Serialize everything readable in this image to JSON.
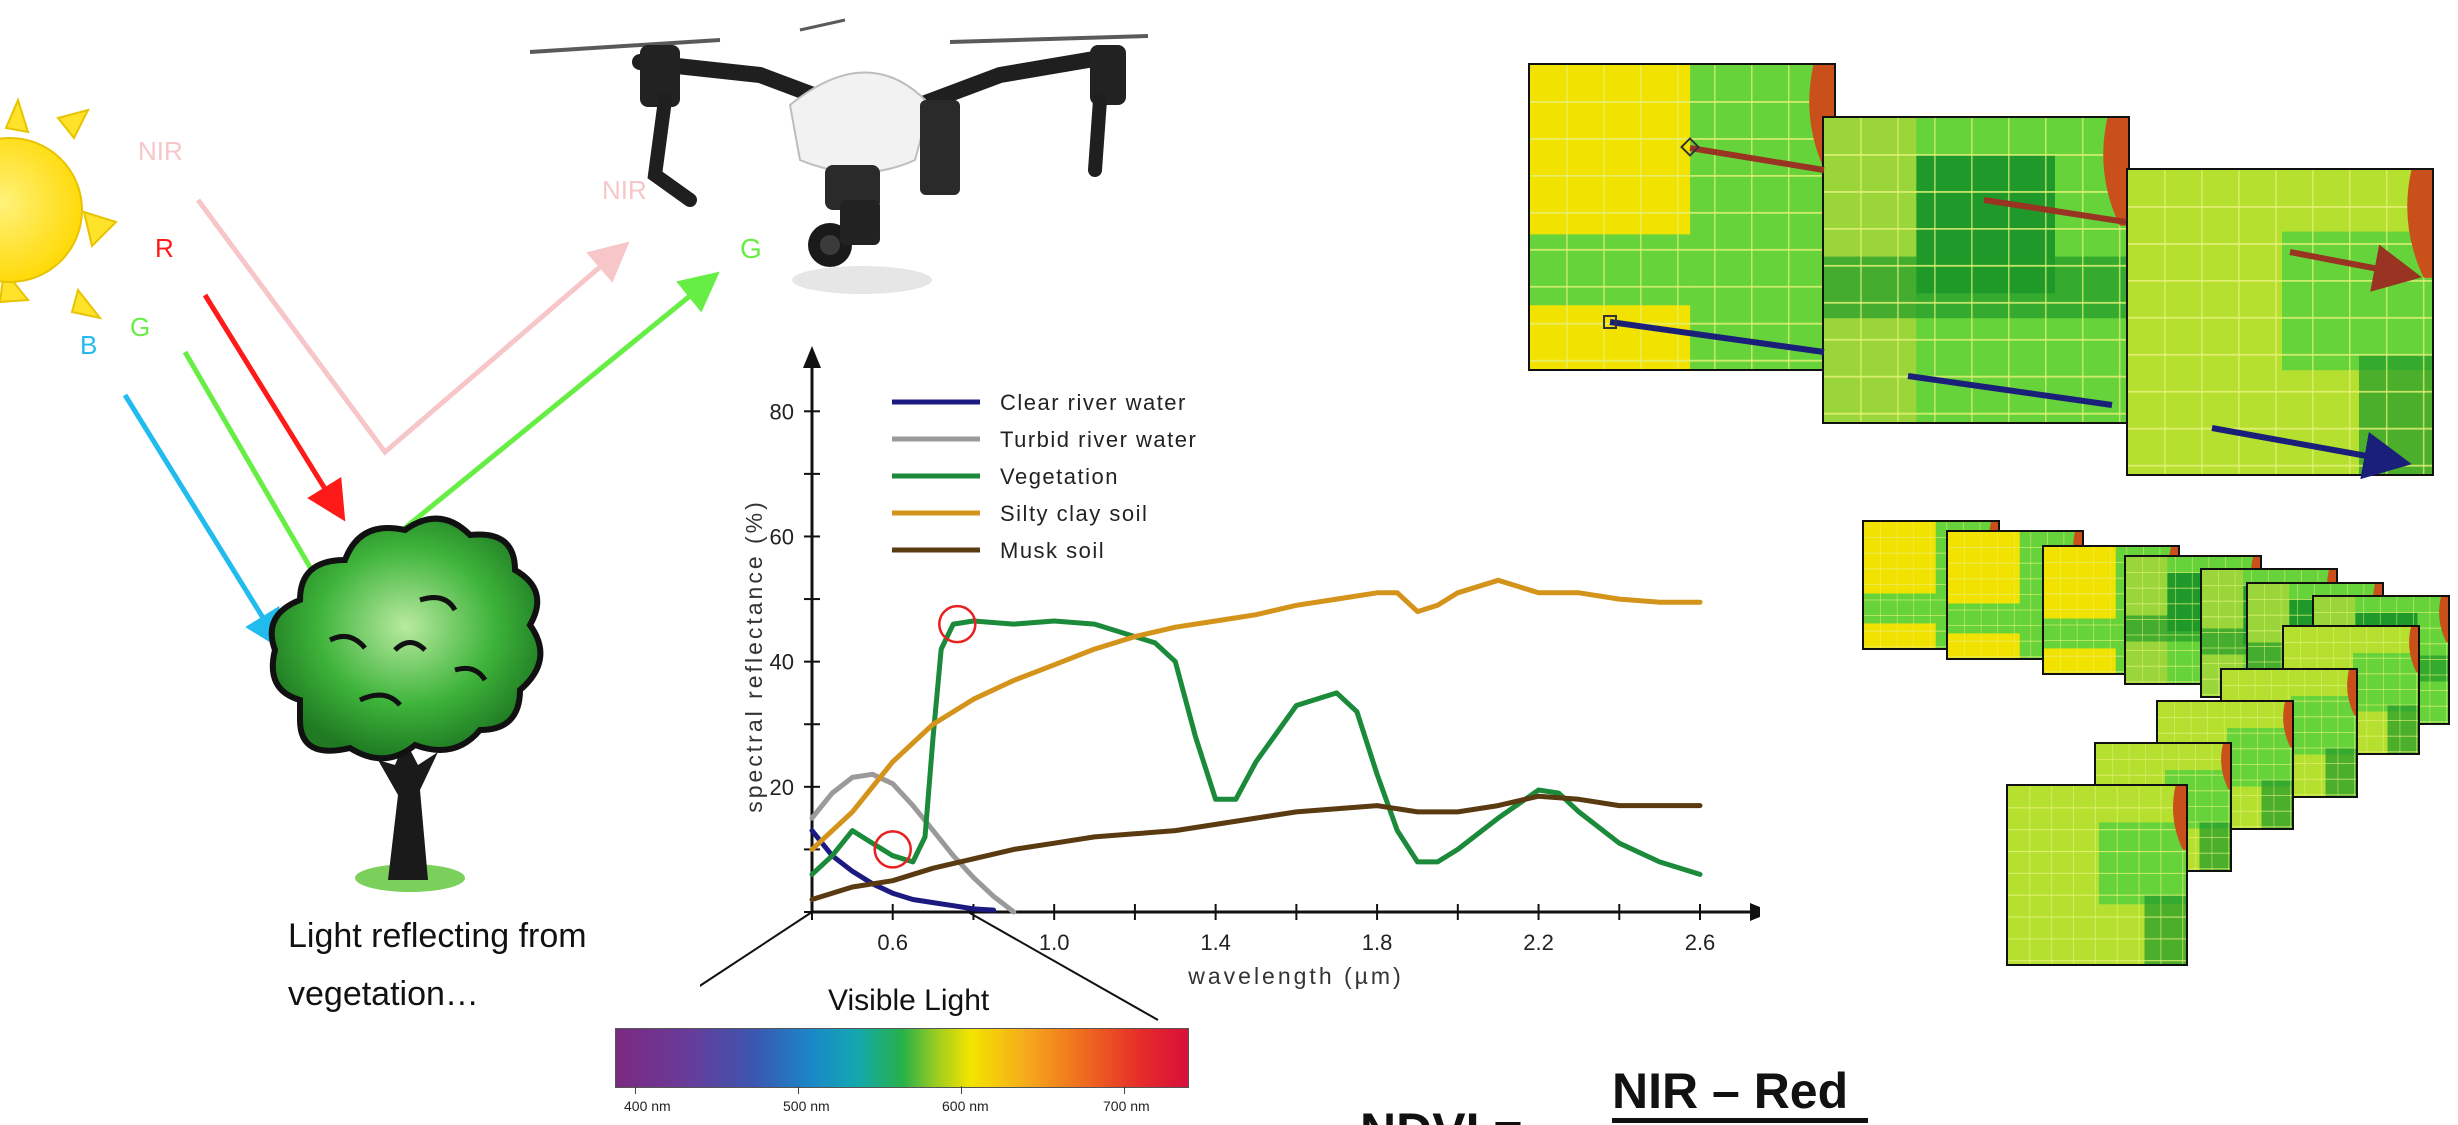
{
  "diagram": {
    "band_labels": {
      "nir": "NIR",
      "r": "R",
      "g": "G",
      "b": "B",
      "nir_reflected": "NIR",
      "g_reflected": "G"
    },
    "caption_line1": "Light reflecting from",
    "caption_line2": "vegetation…",
    "formula_numerator": "NIR – Red",
    "formula_lhs": "NDVI =",
    "spectrum": {
      "title": "Visible Light",
      "ticks": [
        "400 nm",
        "500 nm",
        "600 nm",
        "700 nm"
      ]
    },
    "colors": {
      "nir": "#f7c6c9",
      "red": "#ff1a1a",
      "green": "#66ee44",
      "blue": "#22bbee",
      "sun": "#ffe22a",
      "sun_rays": "#f4d000",
      "field_yellow": "#f2e200",
      "field_green": "#66d33a",
      "field_dark": "#1f9a2a",
      "arrow_brown": "#993322",
      "arrow_navy": "#1a1f7a"
    },
    "icons": [
      "sun-icon",
      "drone-icon",
      "tree-icon"
    ]
  },
  "chart_data": {
    "type": "line",
    "title": "",
    "xlabel": "wavelength (µm)",
    "ylabel": "spectral reflectance (%)",
    "xlim": [
      0.4,
      2.6
    ],
    "ylim": [
      0,
      85
    ],
    "x_ticks": [
      "0.6",
      "1.0",
      "1.4",
      "1.8",
      "2.2",
      "2.6"
    ],
    "y_ticks": [
      "20",
      "40",
      "60",
      "80"
    ],
    "legend_position": "top-left",
    "series": [
      {
        "name": "Clear river water",
        "color": "#1c1a80",
        "points": [
          [
            0.4,
            13
          ],
          [
            0.45,
            9
          ],
          [
            0.5,
            6.5
          ],
          [
            0.55,
            4.5
          ],
          [
            0.6,
            3
          ],
          [
            0.65,
            2
          ],
          [
            0.7,
            1.5
          ],
          [
            0.75,
            1
          ],
          [
            0.8,
            0.5
          ],
          [
            0.85,
            0.3
          ]
        ]
      },
      {
        "name": "Turbid river water",
        "color": "#9a9a9a",
        "points": [
          [
            0.4,
            15
          ],
          [
            0.45,
            19
          ],
          [
            0.5,
            21.5
          ],
          [
            0.55,
            22
          ],
          [
            0.6,
            20.5
          ],
          [
            0.65,
            17
          ],
          [
            0.7,
            13
          ],
          [
            0.75,
            9
          ],
          [
            0.8,
            5.5
          ],
          [
            0.85,
            2.5
          ],
          [
            0.9,
            0
          ]
        ]
      },
      {
        "name": "Vegetation",
        "color": "#1b8a3a",
        "points": [
          [
            0.4,
            6
          ],
          [
            0.45,
            9
          ],
          [
            0.5,
            13
          ],
          [
            0.55,
            11
          ],
          [
            0.6,
            9
          ],
          [
            0.65,
            8
          ],
          [
            0.68,
            12
          ],
          [
            0.7,
            28
          ],
          [
            0.72,
            42
          ],
          [
            0.75,
            46
          ],
          [
            0.8,
            46.5
          ],
          [
            0.9,
            46
          ],
          [
            1.0,
            46.5
          ],
          [
            1.1,
            46
          ],
          [
            1.2,
            44
          ],
          [
            1.25,
            43
          ],
          [
            1.3,
            40
          ],
          [
            1.35,
            28
          ],
          [
            1.4,
            18
          ],
          [
            1.45,
            18
          ],
          [
            1.5,
            24
          ],
          [
            1.6,
            33
          ],
          [
            1.7,
            35
          ],
          [
            1.75,
            32
          ],
          [
            1.8,
            22
          ],
          [
            1.85,
            13
          ],
          [
            1.9,
            8
          ],
          [
            1.95,
            8
          ],
          [
            2.0,
            10
          ],
          [
            2.1,
            15
          ],
          [
            2.2,
            19.5
          ],
          [
            2.25,
            19
          ],
          [
            2.3,
            16
          ],
          [
            2.4,
            11
          ],
          [
            2.5,
            8
          ],
          [
            2.6,
            6
          ]
        ]
      },
      {
        "name": "Silty clay soil",
        "color": "#d4931a",
        "points": [
          [
            0.4,
            10
          ],
          [
            0.5,
            16
          ],
          [
            0.6,
            24
          ],
          [
            0.7,
            30
          ],
          [
            0.8,
            34
          ],
          [
            0.9,
            37
          ],
          [
            1.0,
            39.5
          ],
          [
            1.1,
            42
          ],
          [
            1.2,
            44
          ],
          [
            1.3,
            45.5
          ],
          [
            1.4,
            46.5
          ],
          [
            1.5,
            47.5
          ],
          [
            1.6,
            49
          ],
          [
            1.7,
            50
          ],
          [
            1.8,
            51
          ],
          [
            1.85,
            51
          ],
          [
            1.9,
            48
          ],
          [
            1.95,
            49
          ],
          [
            2.0,
            51
          ],
          [
            2.1,
            53
          ],
          [
            2.15,
            52
          ],
          [
            2.2,
            51
          ],
          [
            2.3,
            51
          ],
          [
            2.4,
            50
          ],
          [
            2.5,
            49.5
          ],
          [
            2.6,
            49.5
          ]
        ]
      },
      {
        "name": "Musk soil",
        "color": "#5a3a10",
        "points": [
          [
            0.4,
            2
          ],
          [
            0.5,
            4
          ],
          [
            0.6,
            5
          ],
          [
            0.7,
            7
          ],
          [
            0.8,
            8.5
          ],
          [
            0.9,
            10
          ],
          [
            1.0,
            11
          ],
          [
            1.1,
            12
          ],
          [
            1.2,
            12.5
          ],
          [
            1.3,
            13
          ],
          [
            1.4,
            14
          ],
          [
            1.5,
            15
          ],
          [
            1.6,
            16
          ],
          [
            1.7,
            16.5
          ],
          [
            1.8,
            17
          ],
          [
            1.9,
            16
          ],
          [
            2.0,
            16
          ],
          [
            2.1,
            17
          ],
          [
            2.2,
            18.5
          ],
          [
            2.3,
            18
          ],
          [
            2.4,
            17
          ],
          [
            2.5,
            17
          ],
          [
            2.6,
            17
          ]
        ]
      }
    ],
    "annotations": [
      {
        "shape": "circle",
        "color": "#e82020",
        "x": 0.6,
        "y": 10
      },
      {
        "shape": "circle",
        "color": "#e82020",
        "x": 0.76,
        "y": 46
      }
    ]
  }
}
